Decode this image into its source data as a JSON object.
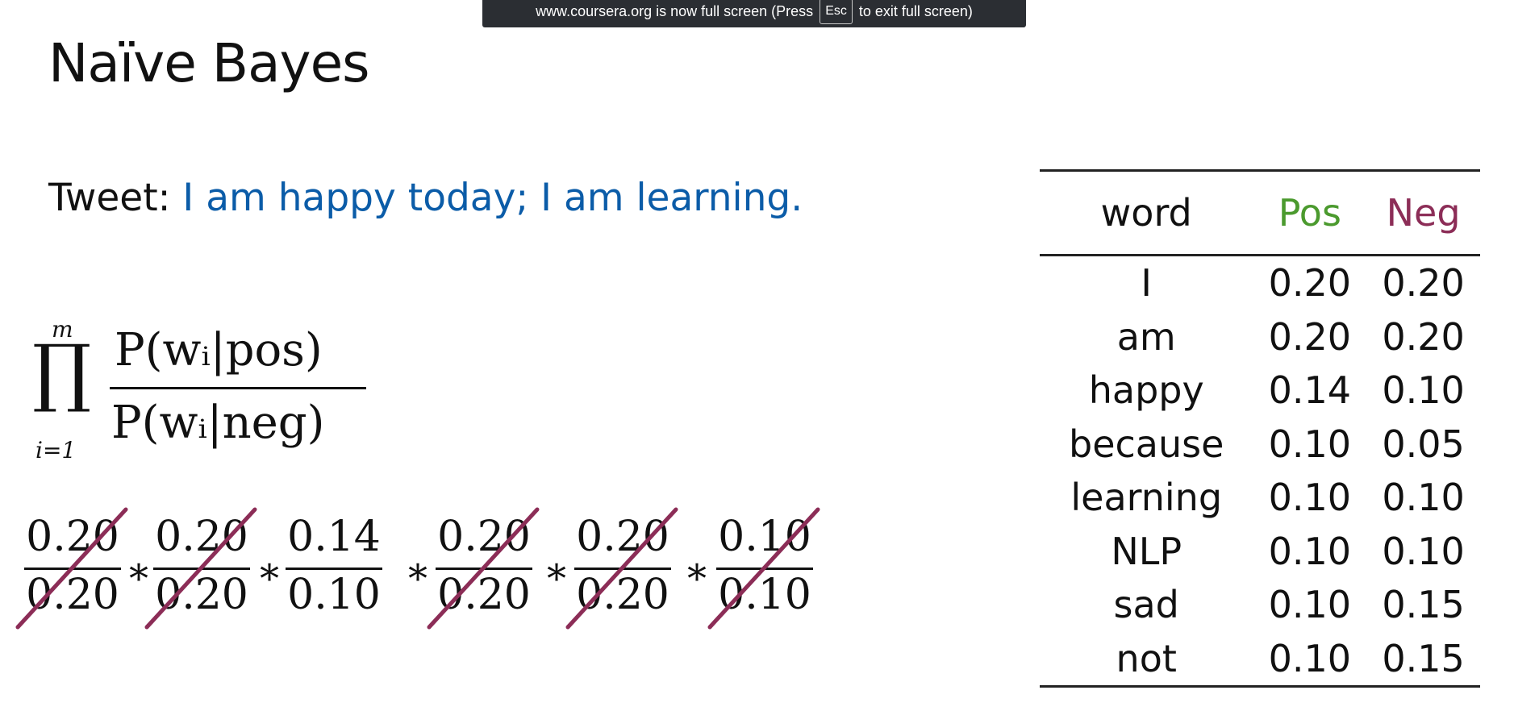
{
  "banner": {
    "before": "www.coursera.org is now full screen (Press",
    "key": "Esc",
    "after": "to exit full screen)"
  },
  "slide": {
    "title": "Naïve Bayes",
    "tweet_label": "Tweet:",
    "tweet_text": "I am happy today;  I am learning.",
    "formula": {
      "upper": "m",
      "lower": "i=1",
      "numerator": "P(wᵢ|pos)",
      "denominator": "P(wᵢ|neg)"
    },
    "product_terms": [
      {
        "num": "0.20",
        "den": "0.20",
        "crossed": true
      },
      {
        "num": "0.20",
        "den": "0.20",
        "crossed": true
      },
      {
        "num": "0.14",
        "den": "0.10",
        "crossed": false
      },
      {
        "num": "0.20",
        "den": "0.20",
        "crossed": true
      },
      {
        "num": "0.20",
        "den": "0.20",
        "crossed": true
      },
      {
        "num": "0.10",
        "den": "0.10",
        "crossed": true
      }
    ],
    "operator": "*",
    "strike_color": "#8c2d57"
  },
  "table": {
    "headers": [
      "word",
      "Pos",
      "Neg"
    ],
    "header_colors": {
      "pos": "#4b9a2e",
      "neg": "#8c2d57"
    },
    "rows": [
      [
        "I",
        "0.20",
        "0.20"
      ],
      [
        "am",
        "0.20",
        "0.20"
      ],
      [
        "happy",
        "0.14",
        "0.10"
      ],
      [
        "because",
        "0.10",
        "0.05"
      ],
      [
        "learning",
        "0.10",
        "0.10"
      ],
      [
        "NLP",
        "0.10",
        "0.10"
      ],
      [
        "sad",
        "0.10",
        "0.15"
      ],
      [
        "not",
        "0.10",
        "0.15"
      ]
    ]
  },
  "colors": {
    "tweet_text": "#0b5ca8",
    "banner_bg": "#2b2e33"
  }
}
